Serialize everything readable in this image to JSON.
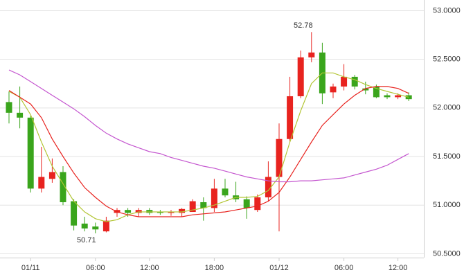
{
  "chart_data": {
    "type": "candlestick",
    "categories": [
      null,
      null,
      "01/11",
      null,
      null,
      null,
      null,
      null,
      "06:00",
      null,
      null,
      null,
      null,
      "12:00",
      null,
      null,
      null,
      null,
      null,
      "18:00",
      null,
      null,
      null,
      null,
      null,
      "01/12",
      null,
      null,
      null,
      null,
      null,
      "06:00",
      null,
      null,
      null,
      null,
      "12:00",
      null
    ],
    "open": [
      52.06,
      51.95,
      51.9,
      51.17,
      51.27,
      51.34,
      51.04,
      50.81,
      50.78,
      50.73,
      50.92,
      50.95,
      50.92,
      50.95,
      50.93,
      50.92,
      50.92,
      50.93,
      51.03,
      50.97,
      51.17,
      51.1,
      51.06,
      50.95,
      51.08,
      51.29,
      51.68,
      52.12,
      52.52,
      52.57,
      52.16,
      52.22,
      52.32,
      52.2,
      52.22,
      52.13,
      52.11,
      52.13
    ],
    "high": [
      52.17,
      52.22,
      51.92,
      51.6,
      51.48,
      51.4,
      51.06,
      50.88,
      50.82,
      50.88,
      50.97,
      50.97,
      50.97,
      50.97,
      50.95,
      50.95,
      50.97,
      51.06,
      51.08,
      51.27,
      51.27,
      51.24,
      51.09,
      51.11,
      51.45,
      51.84,
      52.32,
      52.59,
      52.78,
      52.67,
      52.25,
      52.45,
      52.34,
      52.27,
      52.24,
      52.15,
      52.15,
      52.16
    ],
    "low": [
      51.84,
      51.79,
      51.13,
      51.13,
      51.23,
      51.0,
      50.74,
      50.73,
      50.71,
      50.72,
      50.88,
      50.88,
      50.88,
      50.9,
      50.9,
      50.89,
      50.88,
      50.93,
      50.84,
      50.93,
      51.08,
      51.03,
      50.86,
      50.93,
      51.04,
      50.73,
      51.65,
      52.1,
      52.47,
      52.04,
      52.1,
      52.18,
      52.19,
      52.14,
      52.1,
      52.09,
      52.09,
      52.07
    ],
    "close": [
      51.95,
      51.9,
      51.17,
      51.29,
      51.34,
      51.03,
      50.79,
      50.76,
      50.75,
      50.84,
      50.95,
      50.92,
      50.95,
      50.92,
      50.92,
      50.93,
      50.96,
      51.04,
      50.97,
      51.17,
      51.1,
      51.06,
      50.97,
      51.08,
      51.29,
      51.68,
      52.12,
      52.52,
      52.57,
      52.15,
      52.22,
      52.32,
      52.22,
      52.18,
      52.11,
      52.11,
      52.13,
      52.09
    ],
    "up_color": "#e8231f",
    "down_color": "#3aa51c",
    "lines": [
      {
        "color": "#b3c535",
        "values": [
          52.17,
          52.11,
          51.93,
          51.65,
          51.4,
          51.22,
          51.04,
          50.93,
          50.86,
          50.83,
          50.85,
          50.9,
          50.93,
          50.93,
          50.93,
          50.93,
          50.93,
          50.95,
          50.97,
          51.0,
          51.04,
          51.08,
          51.08,
          51.09,
          51.15,
          51.29,
          51.65,
          51.97,
          52.25,
          52.36,
          52.36,
          52.32,
          52.29,
          52.24,
          52.2,
          52.17,
          52.14,
          52.11
        ]
      },
      {
        "color": "#e8231f",
        "values": [
          52.18,
          52.11,
          52.04,
          51.9,
          51.68,
          51.5,
          51.33,
          51.18,
          51.08,
          50.99,
          50.93,
          50.9,
          50.88,
          50.88,
          50.88,
          50.88,
          50.88,
          50.9,
          50.91,
          50.92,
          50.93,
          50.95,
          50.97,
          50.99,
          51.04,
          51.13,
          51.29,
          51.47,
          51.65,
          51.82,
          51.93,
          52.04,
          52.13,
          52.2,
          52.22,
          52.22,
          52.2,
          52.15
        ]
      },
      {
        "color": "#c455cf",
        "values": [
          52.39,
          52.34,
          52.27,
          52.2,
          52.13,
          52.06,
          51.99,
          51.91,
          51.82,
          51.74,
          51.68,
          51.63,
          51.59,
          51.55,
          51.53,
          51.49,
          51.46,
          51.43,
          51.4,
          51.38,
          51.35,
          51.32,
          51.29,
          51.27,
          51.25,
          51.24,
          51.24,
          51.25,
          51.25,
          51.26,
          51.27,
          51.28,
          51.31,
          51.34,
          51.37,
          51.41,
          51.47,
          51.53
        ]
      }
    ],
    "annotations": [
      {
        "text": "52.78",
        "value": 52.78
      },
      {
        "text": "50.71",
        "value": 50.71
      }
    ],
    "ylim": [
      50.46,
      53.11
    ],
    "yticks": [
      {
        "value": 50.5,
        "label": "50.5000"
      },
      {
        "value": 51,
        "label": "51.0000"
      },
      {
        "value": 51.5,
        "label": "51.5000"
      },
      {
        "value": 52,
        "label": "52.0000"
      },
      {
        "value": 52.5,
        "label": "52.5000"
      },
      {
        "value": 53,
        "label": "53.0000"
      }
    ],
    "grid": true
  }
}
